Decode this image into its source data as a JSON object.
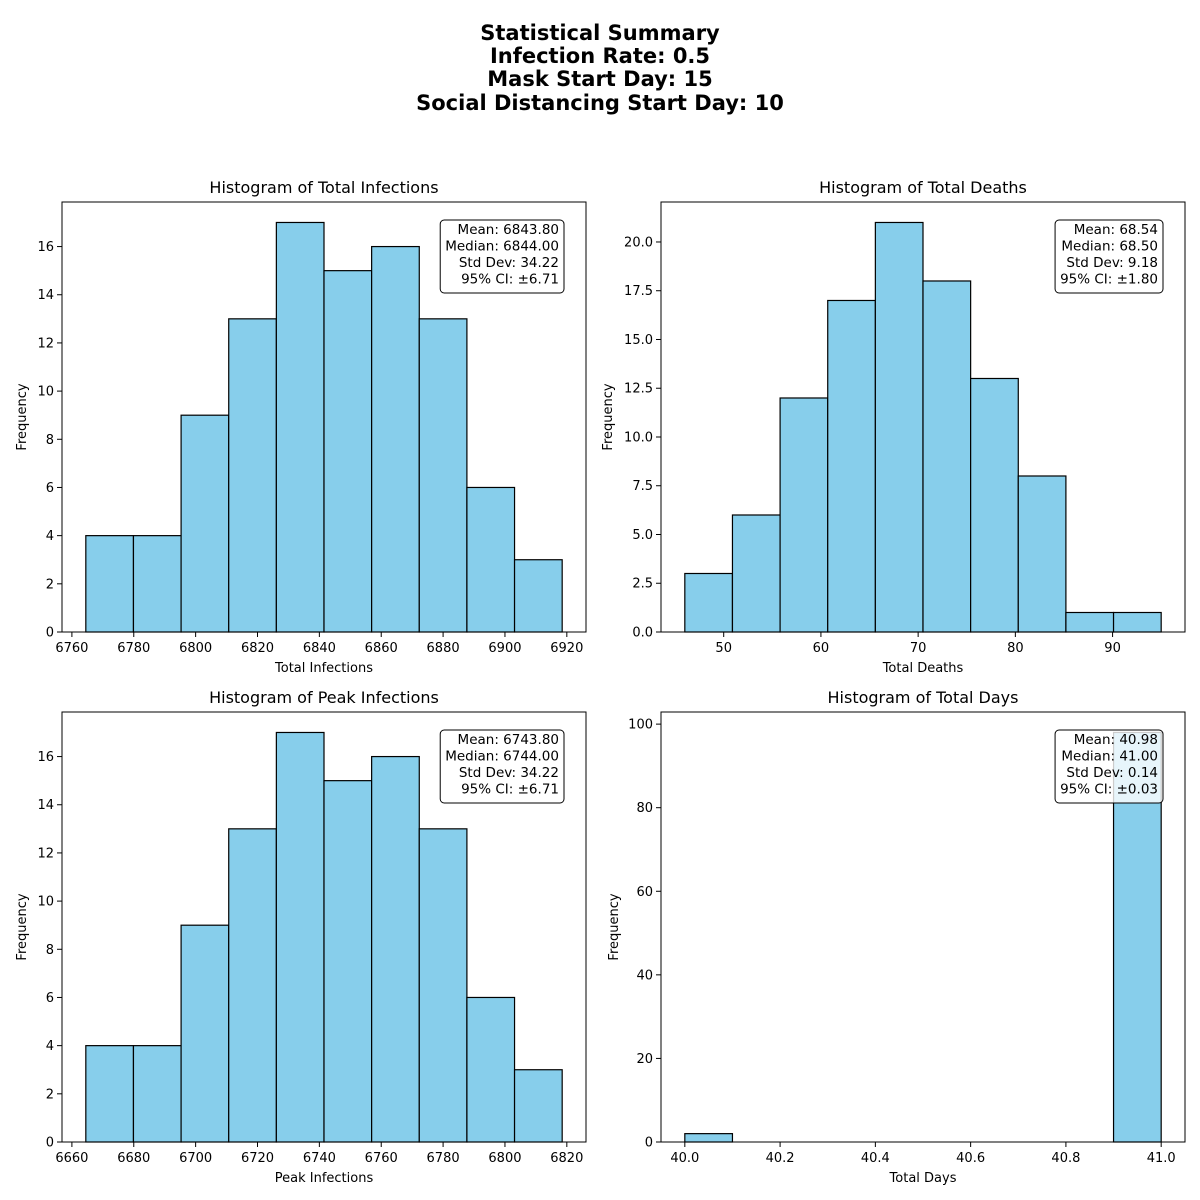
{
  "figure": {
    "title_lines": [
      "Statistical Summary",
      "Infection Rate: 0.5",
      "Mask Start Day: 15",
      "Social Distancing Start Day: 10"
    ]
  },
  "style": {
    "bar_color": "#87CEEB",
    "edge_color": "#000000"
  },
  "chart_data": [
    {
      "type": "bar",
      "title": "Histogram of Total Infections",
      "xlabel": "Total Infections",
      "ylabel": "Frequency",
      "bin_edges": [
        6764.5,
        6779.9,
        6795.3,
        6810.7,
        6826.1,
        6841.5,
        6856.9,
        6872.3,
        6887.7,
        6903.1,
        6918.5
      ],
      "values": [
        4,
        4,
        9,
        13,
        17,
        15,
        16,
        13,
        6,
        3
      ],
      "xlim": [
        6756.8,
        6926.2
      ],
      "ylim": [
        0,
        17.85
      ],
      "xticks": [
        6760,
        6780,
        6800,
        6820,
        6840,
        6860,
        6880,
        6900,
        6920
      ],
      "yticks": [
        0,
        2,
        4,
        6,
        8,
        10,
        12,
        14,
        16
      ],
      "stats": [
        "Mean: 6843.80",
        "Median: 6844.00",
        "Std Dev: 34.22",
        "95% CI: ±6.71"
      ]
    },
    {
      "type": "bar",
      "title": "Histogram of Total Deaths",
      "xlabel": "Total Deaths",
      "ylabel": "Frequency",
      "bin_edges": [
        46,
        50.9,
        55.8,
        60.7,
        65.6,
        70.5,
        75.4,
        80.3,
        85.2,
        90.1,
        95
      ],
      "values": [
        3,
        6,
        12,
        17,
        21,
        18,
        13,
        8,
        1,
        1
      ],
      "xlim": [
        43.55,
        97.45
      ],
      "ylim": [
        0,
        22.05
      ],
      "xticks": [
        50,
        60,
        70,
        80,
        90
      ],
      "yticks": [
        0.0,
        2.5,
        5.0,
        7.5,
        10.0,
        12.5,
        15.0,
        17.5,
        20.0
      ],
      "stats": [
        "Mean: 68.54",
        "Median: 68.50",
        "Std Dev: 9.18",
        "95% CI: ±1.80"
      ]
    },
    {
      "type": "bar",
      "title": "Histogram of Peak Infections",
      "xlabel": "Peak Infections",
      "ylabel": "Frequency",
      "bin_edges": [
        6664.5,
        6679.9,
        6695.3,
        6710.7,
        6726.1,
        6741.5,
        6756.9,
        6772.3,
        6787.7,
        6803.1,
        6818.5
      ],
      "values": [
        4,
        4,
        9,
        13,
        17,
        15,
        16,
        13,
        6,
        3
      ],
      "xlim": [
        6656.8,
        6826.2
      ],
      "ylim": [
        0,
        17.85
      ],
      "xticks": [
        6660,
        6680,
        6700,
        6720,
        6740,
        6760,
        6780,
        6800,
        6820
      ],
      "yticks": [
        0,
        2,
        4,
        6,
        8,
        10,
        12,
        14,
        16
      ],
      "stats": [
        "Mean: 6743.80",
        "Median: 6744.00",
        "Std Dev: 34.22",
        "95% CI: ±6.71"
      ]
    },
    {
      "type": "bar",
      "title": "Histogram of Total Days",
      "xlabel": "Total Days",
      "ylabel": "Frequency",
      "bin_edges": [
        40.0,
        40.1,
        40.2,
        40.3,
        40.4,
        40.5,
        40.6,
        40.7,
        40.8,
        40.9,
        41.0
      ],
      "values": [
        2,
        0,
        0,
        0,
        0,
        0,
        0,
        0,
        0,
        98
      ],
      "xlim": [
        39.95,
        41.05
      ],
      "ylim": [
        0,
        102.9
      ],
      "xticks": [
        40.0,
        40.2,
        40.4,
        40.6,
        40.8,
        41.0
      ],
      "yticks": [
        0,
        20,
        40,
        60,
        80,
        100
      ],
      "stats": [
        "Mean: 40.98",
        "Median: 41.00",
        "Std Dev: 0.14",
        "95% CI: ±0.03"
      ]
    }
  ]
}
